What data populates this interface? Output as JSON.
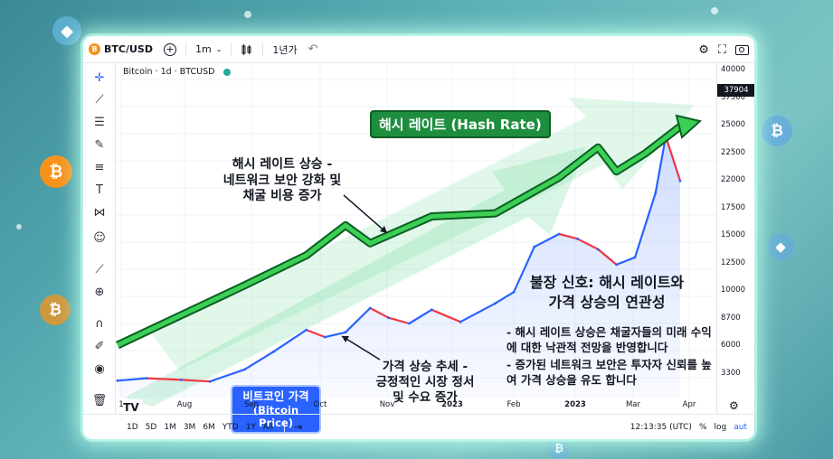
{
  "toolbar": {
    "symbol": "BTC/USD",
    "symbol_icon": "B",
    "interval": "1m",
    "period": "1년가",
    "add_icon": "+",
    "undo_icon": "↶"
  },
  "legend": {
    "label": "Bitcoin · 1d · BTCUSD"
  },
  "annotations": {
    "hash_badge": "해시 레이트 (Hash Rate)",
    "hash_rising": [
      "해시 레이트 상승 -",
      "네트워크 보안 강화 및",
      "채굴 비용 증가"
    ],
    "price_rising": [
      "가격 상승 추세 -",
      "긍정적인 시장 정서",
      "및 수요 증가"
    ],
    "price_badge": [
      "비트코인 가격",
      "(Bitcoin Price)"
    ],
    "bull_title": [
      "불장 신호: 해시 레이트와",
      "가격 상승의 연관성"
    ],
    "bull_points": [
      "- 해시 레이트 상승은 채굴자들의 미래 수익에 대한 낙관적 전망을 반영합니다",
      "- 증가된 네트워크 보안은 투자자 신뢰를 높여 가격 상승을 유도 합니다"
    ]
  },
  "bottom": {
    "ranges": [
      "1D",
      "5D",
      "1M",
      "3M",
      "6M",
      "YTD",
      "1Y",
      "All"
    ],
    "time": "12:13:35 (UTC)",
    "percent": "%",
    "log": "log",
    "auto": "aut"
  },
  "colors": {
    "up": "#2962ff",
    "down": "#f23645",
    "hash": "#1e8e3e",
    "accent_bg": "#5fb3b8"
  },
  "chart_data": {
    "type": "line",
    "price_axis_ticks": [
      "40000",
      "37500",
      "25000",
      "22500",
      "22000",
      "17500",
      "15000",
      "12500",
      "10000",
      "8700",
      "6000",
      "3300"
    ],
    "last_price": "37904",
    "time_axis_ticks": [
      "1",
      "Aug",
      "Sep",
      "Oct",
      "Nov",
      "2023",
      "Feb",
      "2023",
      "Mar",
      "Apr"
    ],
    "series": [
      {
        "name": "비트코인 가격 (Bitcoin Price)",
        "x": [
          "2022-07-01",
          "2022-07-15",
          "2022-08-01",
          "2022-08-15",
          "2022-09-01",
          "2022-09-15",
          "2022-10-01",
          "2022-10-10",
          "2022-10-20",
          "2022-11-01",
          "2022-11-10",
          "2022-11-20",
          "2022-12-01",
          "2022-12-15",
          "2023-01-01",
          "2023-01-10",
          "2023-01-20",
          "2023-02-01",
          "2023-02-10",
          "2023-02-20",
          "2023-03-01",
          "2023-03-10",
          "2023-03-20",
          "2023-03-25",
          "2023-04-01"
        ],
        "y": [
          4200,
          4500,
          4300,
          4100,
          5600,
          7800,
          10500,
          9600,
          10200,
          13200,
          12000,
          11300,
          13000,
          11500,
          13800,
          15200,
          20800,
          22400,
          21800,
          20500,
          18600,
          19500,
          27500,
          34500,
          29000
        ]
      },
      {
        "name": "해시 레이트 (Hash Rate)",
        "x": [
          "2022-07-01",
          "2022-08-01",
          "2022-09-01",
          "2022-10-01",
          "2022-10-20",
          "2022-11-01",
          "2022-12-01",
          "2023-01-01",
          "2023-02-01",
          "2023-02-20",
          "2023-03-01",
          "2023-03-15",
          "2023-04-01"
        ],
        "y": [
          3,
          4,
          5,
          6,
          7,
          6.4,
          7.3,
          7.4,
          8.6,
          9.6,
          8.8,
          9.4,
          10.3
        ]
      }
    ]
  }
}
